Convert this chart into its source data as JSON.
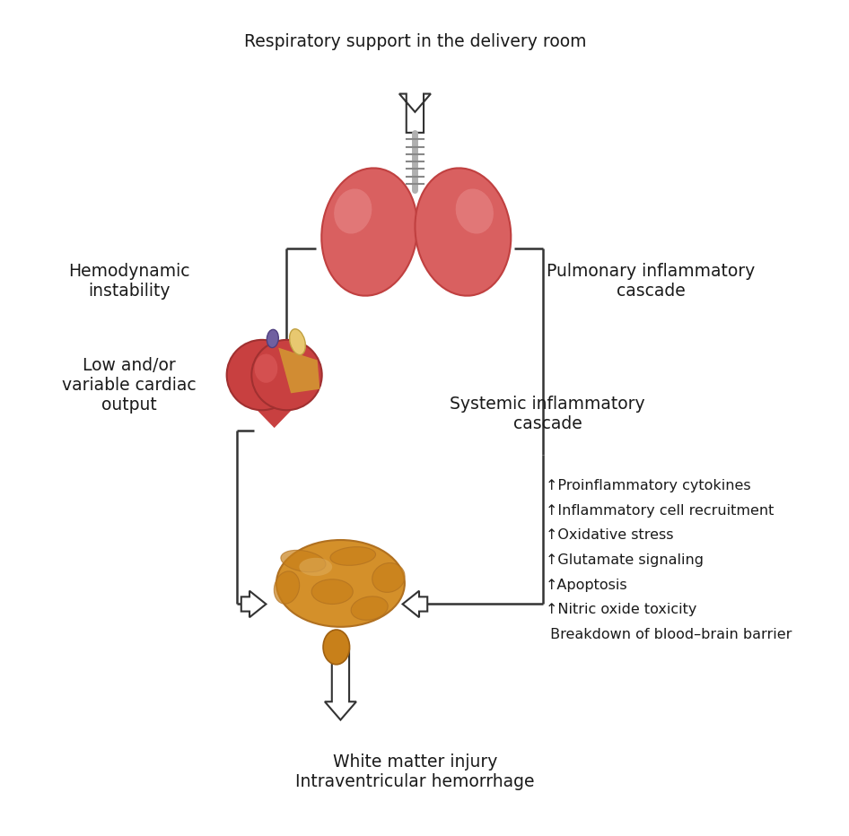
{
  "title": "Respiratory support in the delivery room",
  "bg_color": "#ffffff",
  "text_color": "#1a1a1a",
  "arrow_color": "#333333",
  "arrow_fill": "#ffffff",
  "labels": {
    "hemodynamic": "Hemodynamic\ninstability",
    "pulmonary": "Pulmonary inflammatory\ncascade",
    "systemic": "Systemic inflammatory\ncascade",
    "cardiac": "Low and/or\nvariable cardiac\noutput",
    "outcome": "White matter injury\nIntraventricular hemorrhage",
    "inflammatory_items": [
      "↑Proinflammatory cytokines",
      "↑Inflammatory cell recruitment",
      "↑Oxidative stress",
      "↑Glutamate signaling",
      "↑Apoptosis",
      "↑Nitric oxide toxicity",
      " Breakdown of blood–brain barrier"
    ]
  },
  "figsize": [
    9.46,
    9.32
  ],
  "dpi": 100
}
